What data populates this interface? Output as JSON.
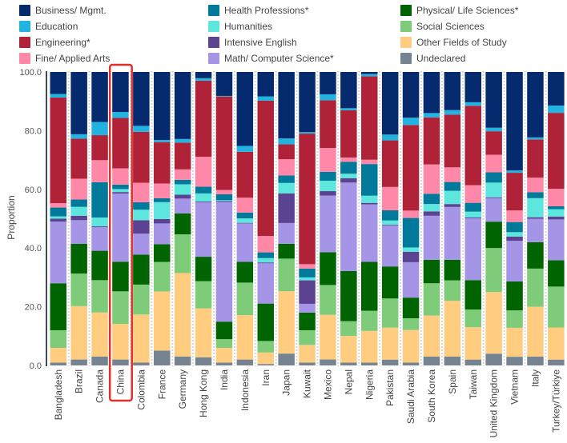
{
  "chart_data": {
    "type": "bar",
    "stacked": true,
    "title": "",
    "xlabel": "",
    "ylabel": "Proportion",
    "ylim": [
      0,
      100
    ],
    "yticks": [
      "0.0",
      "20.0",
      "40.0",
      "60.0",
      "80.0",
      "100.0"
    ],
    "grid": false,
    "legend_position": "top",
    "highlighted_category": "China",
    "highlight_color": "#e0302a",
    "categories": [
      "Bangladesh",
      "Brazil",
      "Canada",
      "China",
      "Colombia",
      "France",
      "Germany",
      "Hong Kong",
      "India",
      "Indonesia",
      "Iran",
      "Japan",
      "Kuwait",
      "Mexico",
      "Nepal",
      "Nigeria",
      "Pakistan",
      "Saudi Arabia",
      "South Korea",
      "Spain",
      "Taiwan",
      "United Kingdom",
      "Vietnam",
      "Italy",
      "Turkey/Türkiye"
    ],
    "series": [
      {
        "name": "Undeclared",
        "color": "#768390",
        "values": [
          1,
          2,
          3,
          2,
          1,
          5,
          3,
          3,
          1,
          2,
          0.5,
          4,
          1,
          2,
          1,
          1,
          2,
          1,
          3,
          3,
          2,
          4,
          3,
          3,
          2
        ]
      },
      {
        "name": "Other Fields of Study",
        "color": "#ffcc80",
        "values": [
          5,
          18,
          15,
          12,
          16,
          20,
          28,
          18,
          5,
          15,
          4,
          21,
          6,
          15,
          9,
          11,
          11,
          11,
          14,
          19,
          11,
          21,
          10,
          17,
          11
        ]
      },
      {
        "name": "Social Sciences",
        "color": "#7ecb7a",
        "values": [
          6,
          11,
          11,
          11,
          10,
          10,
          13,
          10,
          3,
          11,
          4,
          11,
          5,
          10,
          5,
          7,
          10,
          4,
          11,
          7,
          6,
          15,
          6,
          13,
          14
        ]
      },
      {
        "name": "Physical/ Life Sciences*",
        "color": "#006400",
        "values": [
          16,
          10,
          10,
          10,
          10,
          6,
          7,
          9,
          6,
          7,
          13,
          5,
          6,
          11,
          17,
          17,
          11,
          7,
          8,
          7,
          10,
          9,
          10,
          9,
          9
        ]
      },
      {
        "name": "Math/ Computer Science*",
        "color": "#a595e6",
        "values": [
          21,
          8,
          8,
          23,
          7,
          7,
          5,
          20,
          41,
          13,
          14,
          7,
          3,
          19,
          30,
          20,
          14,
          12,
          15,
          18,
          21,
          8,
          14,
          8,
          14
        ]
      },
      {
        "name": "Intensive English",
        "color": "#5c4392",
        "values": [
          1,
          1.5,
          0.3,
          0.5,
          4.5,
          1.5,
          1.3,
          0.3,
          0.3,
          0.2,
          0.3,
          10,
          8,
          1.5,
          1.5,
          0.5,
          0.3,
          3.5,
          1.5,
          1,
          0.3,
          0.3,
          1.5,
          0.5,
          1
        ]
      },
      {
        "name": "Humanities",
        "color": "#5ce6de",
        "values": [
          0.8,
          3,
          3,
          1,
          3.5,
          5.7,
          3.5,
          3,
          0.3,
          1.5,
          1.5,
          3.5,
          1,
          3.5,
          1.5,
          2.5,
          1.5,
          1.5,
          2.5,
          4.5,
          2,
          5,
          1.5,
          6.5,
          2.5
        ]
      },
      {
        "name": "Health Professions*",
        "color": "#00799a",
        "values": [
          3,
          2.5,
          12,
          1.5,
          2.5,
          1.3,
          1.5,
          2.5,
          2,
          2,
          2,
          2.5,
          3,
          3,
          4,
          11,
          3.5,
          10,
          3.5,
          3,
          3,
          3.5,
          3.5,
          2,
          1
        ]
      },
      {
        "name": "Fine/ Applied Arts",
        "color": "#ff87a8",
        "values": [
          1.5,
          7,
          7.5,
          5.5,
          6.5,
          5,
          3.5,
          11,
          1.5,
          5,
          5.7,
          5.5,
          1.5,
          8,
          1.5,
          1.5,
          8,
          2.5,
          10,
          5,
          6,
          6,
          4,
          5,
          6
        ]
      },
      {
        "name": "Engineering*",
        "color": "#b02237",
        "values": [
          36,
          13.5,
          8.5,
          17,
          17,
          14,
          9,
          28,
          32,
          15.5,
          47,
          5,
          44.5,
          16,
          16,
          29,
          16,
          29,
          16,
          18,
          27,
          8,
          13,
          13,
          26
        ]
      },
      {
        "name": "Education",
        "color": "#23b3e0",
        "values": [
          1.2,
          1.5,
          4.5,
          2,
          2,
          0.7,
          1.2,
          0.9,
          0.2,
          2,
          1.5,
          2,
          0.5,
          2,
          0.7,
          0.8,
          2,
          2.5,
          1.5,
          1.5,
          1.2,
          1.2,
          0.8,
          0.7,
          2.5
        ]
      },
      {
        "name": "Business/ Mgmt.",
        "color": "#062a6e",
        "values": [
          7.5,
          21,
          17,
          13.5,
          18,
          23,
          22.5,
          2.3,
          8.2,
          25,
          8.5,
          22.4,
          20.5,
          7.5,
          12.3,
          0.7,
          21.5,
          15.5,
          14,
          13,
          10.3,
          19,
          34,
          22.3,
          11.5
        ]
      }
    ]
  }
}
